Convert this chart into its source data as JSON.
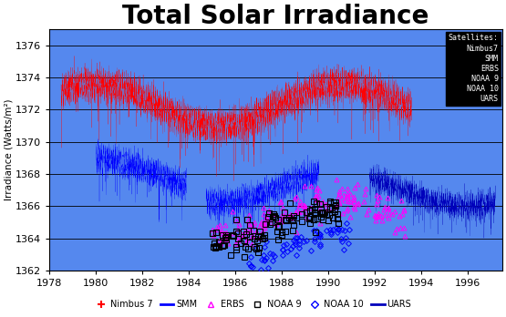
{
  "title": "Total Solar Irradiance",
  "ylabel": "Irradiance (Watts/m²)",
  "background_color": "#5588EE",
  "xlim": [
    1978,
    1997.5
  ],
  "ylim": [
    1362,
    1377
  ],
  "yticks": [
    1362,
    1364,
    1366,
    1368,
    1370,
    1372,
    1374,
    1376
  ],
  "xticks": [
    1978,
    1980,
    1982,
    1984,
    1986,
    1988,
    1990,
    1992,
    1994,
    1996
  ],
  "title_fontsize": 20,
  "box_text": "Satellites:\nNimbus7\nSMM\nERBS\nNOAA 9\nNOAA 10\nUARS",
  "nimbus7_start": 1978.5,
  "nimbus7_end": 1993.6,
  "smm_start": 1980.0,
  "smm_gap_start": 1983.9,
  "smm_gap_end": 1984.75,
  "smm_end": 1989.6,
  "uars_start": 1991.8,
  "uars_end": 1997.2,
  "erbs_start": 1984.8,
  "erbs_end": 1993.5,
  "noaa9_start": 1985.0,
  "noaa9_end": 1990.5,
  "noaa10_start": 1986.5,
  "noaa10_end": 1991.0
}
